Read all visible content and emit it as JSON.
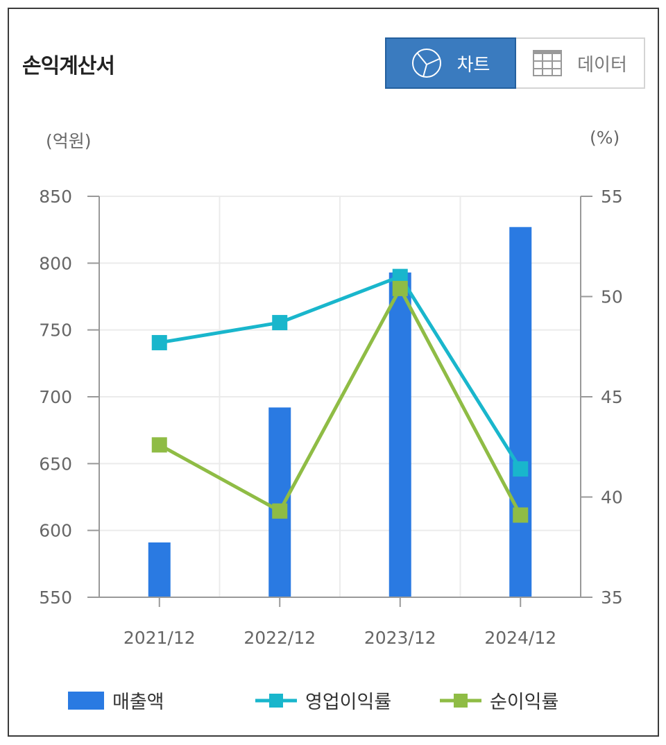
{
  "title": "손익계산서",
  "toggle": {
    "chart_label": "차트",
    "data_label": "데이터",
    "chart_icon": "pie-chart-icon",
    "data_icon": "table-grid-icon"
  },
  "colors": {
    "revenue": "#2a7ae2",
    "op_margin": "#19b6cc",
    "net_margin": "#8fbc45",
    "toggle_active": "#3a7bbf"
  },
  "chart_data": {
    "type": "bar+line",
    "title": "손익계산서",
    "categories": [
      "2021/12",
      "2022/12",
      "2023/12",
      "2024/12"
    ],
    "left_axis": {
      "label": "(억원)",
      "range": [
        550,
        850
      ],
      "ticks": [
        550,
        600,
        650,
        700,
        750,
        800,
        850
      ]
    },
    "right_axis": {
      "label": "(%)",
      "range": [
        35,
        55
      ],
      "ticks": [
        35,
        40,
        45,
        50,
        55
      ]
    },
    "grid": true,
    "legend_position": "bottom",
    "series": [
      {
        "name": "매출액",
        "type": "bar",
        "axis": "left",
        "values": [
          591,
          692,
          793,
          827
        ]
      },
      {
        "name": "영업이익률",
        "type": "line",
        "axis": "right",
        "values": [
          47.7,
          48.7,
          51.0,
          41.4
        ]
      },
      {
        "name": "순이익률",
        "type": "line",
        "axis": "right",
        "values": [
          42.6,
          39.3,
          50.4,
          39.1
        ]
      }
    ]
  }
}
